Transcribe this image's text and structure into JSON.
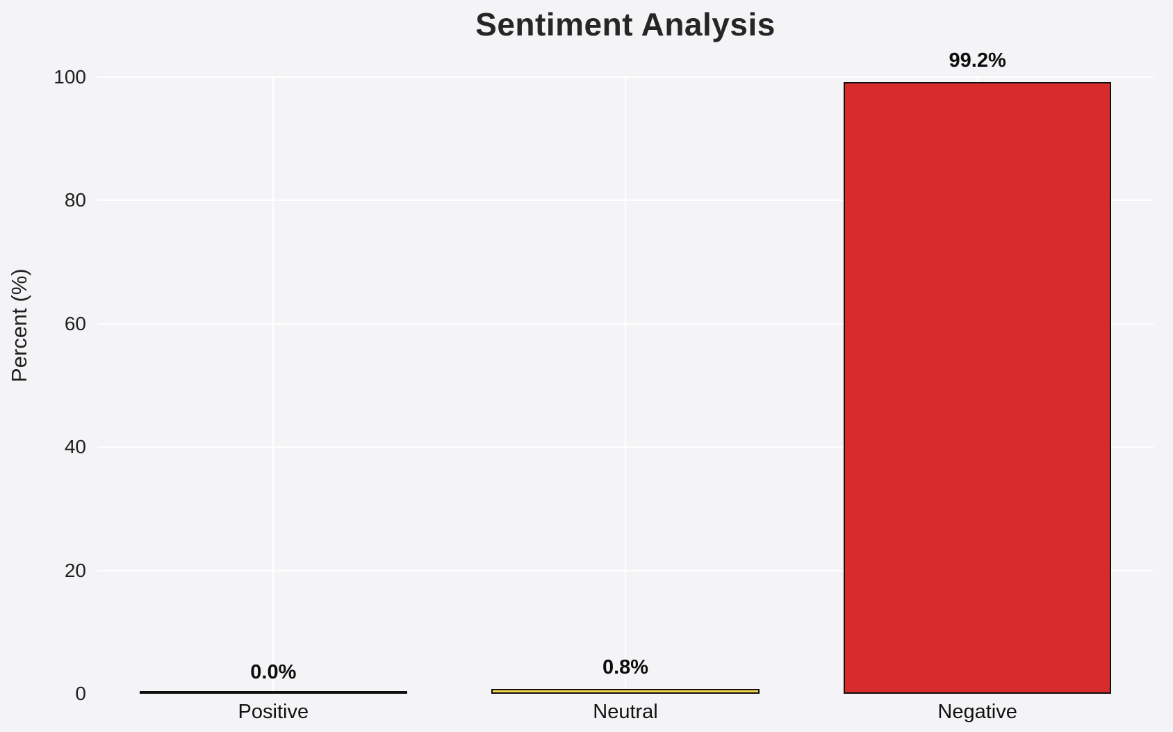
{
  "chart_data": {
    "type": "bar",
    "title": "Sentiment Analysis",
    "xlabel": "",
    "ylabel": "Percent (%)",
    "categories": [
      "Positive",
      "Neutral",
      "Negative"
    ],
    "values": [
      0.0,
      0.8,
      99.2
    ],
    "value_labels": [
      "0.0%",
      "0.8%",
      "99.2%"
    ],
    "bar_colors": [
      "#cccccc",
      "#f4d44d",
      "#d62c2c"
    ],
    "bar_edge_color": "#0f0f0f",
    "ylim": [
      0,
      100
    ],
    "yticks": [
      0,
      20,
      40,
      60,
      80,
      100
    ],
    "grid": true,
    "legend": "none",
    "background_color": "#f4f4f6",
    "gridline_color": "#ffffff"
  }
}
